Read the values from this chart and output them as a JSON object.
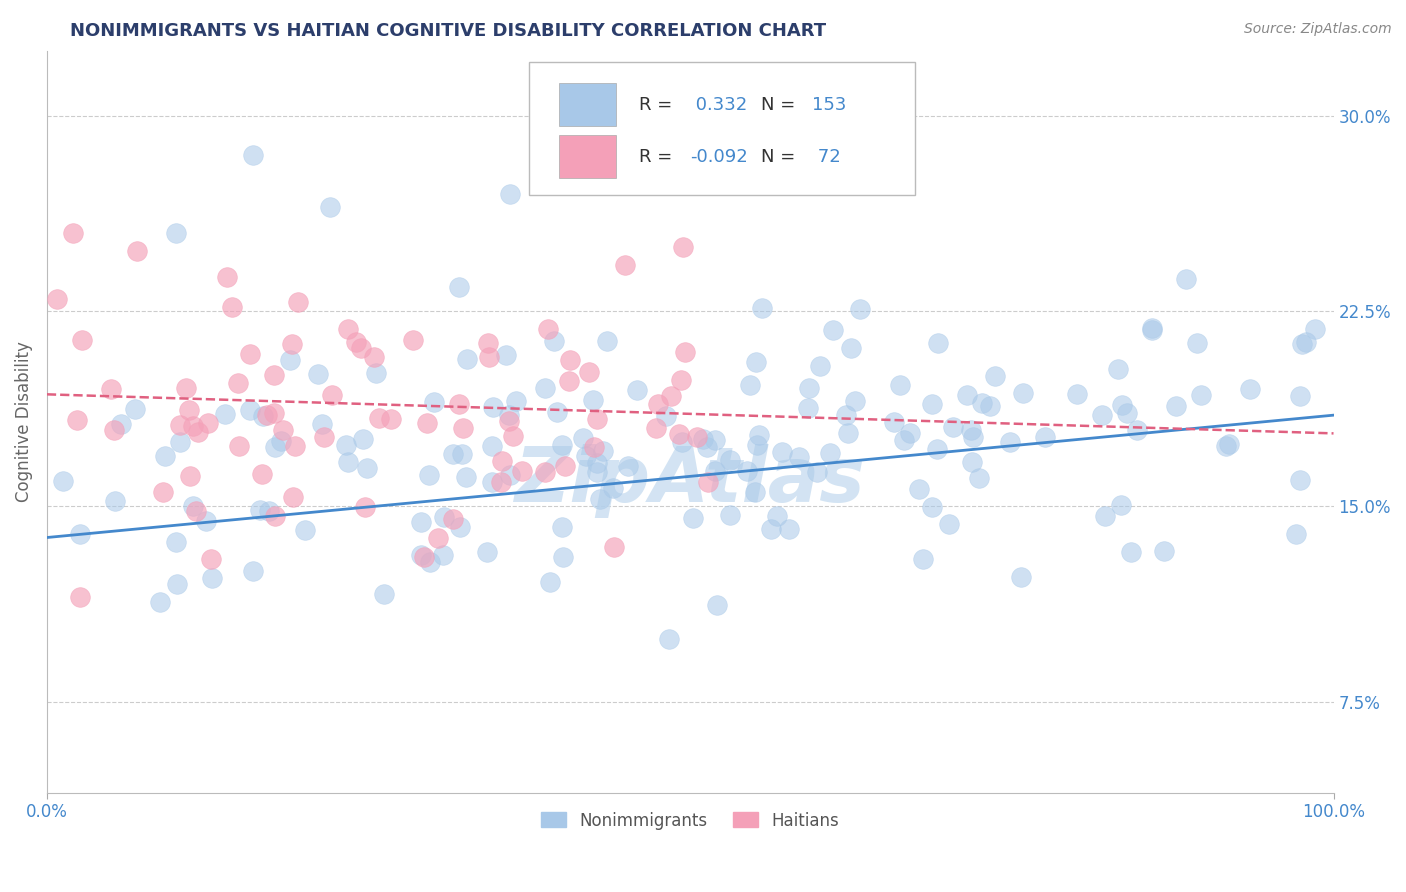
{
  "title": "NONIMMIGRANTS VS HAITIAN COGNITIVE DISABILITY CORRELATION CHART",
  "source": "Source: ZipAtlas.com",
  "ylabel": "Cognitive Disability",
  "xlim": [
    0.0,
    1.0
  ],
  "ylim": [
    0.04,
    0.325
  ],
  "yticks": [
    0.075,
    0.15,
    0.225,
    0.3
  ],
  "ytick_labels": [
    "7.5%",
    "15.0%",
    "22.5%",
    "30.0%"
  ],
  "xticks": [
    0.0,
    1.0
  ],
  "xtick_labels": [
    "0.0%",
    "100.0%"
  ],
  "blue_R": 0.332,
  "blue_N": 153,
  "pink_R": -0.092,
  "pink_N": 72,
  "blue_color": "#a8c8e8",
  "pink_color": "#f4a0b8",
  "blue_line_color": "#4488cc",
  "pink_line_color": "#e06080",
  "watermark": "ZipAtlas",
  "watermark_color": "#c8ddf0",
  "background_color": "#ffffff",
  "grid_color": "#cccccc",
  "title_color": "#2c3e6b",
  "axis_tick_color": "#4488cc",
  "legend_label_blue": "Nonimmigrants",
  "legend_label_pink": "Haitians"
}
